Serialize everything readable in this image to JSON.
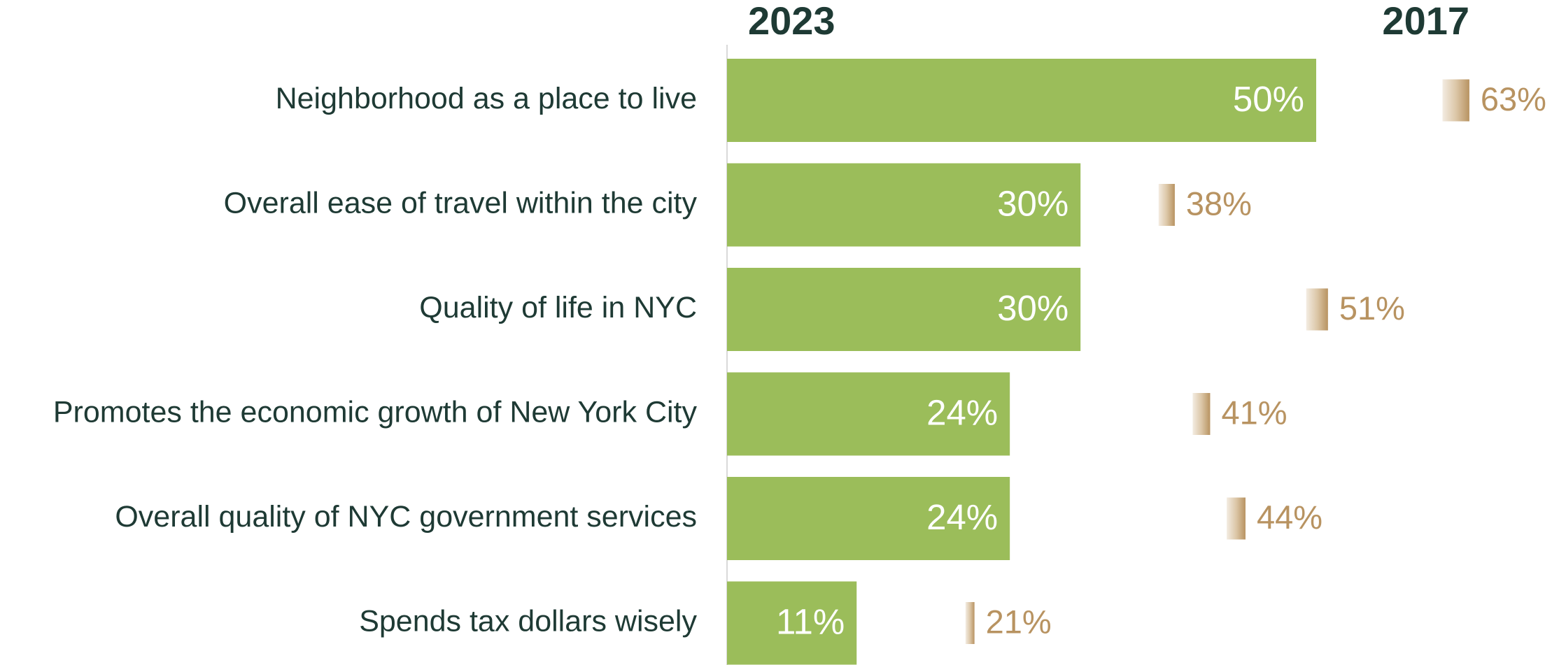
{
  "chart_data": {
    "type": "bar",
    "categories": [
      "Neighborhood as a place to live",
      "Overall ease of travel within the city",
      "Quality of life in NYC",
      "Promotes the economic growth of New York City",
      "Overall quality of NYC government services",
      "Spends tax dollars wisely"
    ],
    "series": [
      {
        "name": "2023",
        "color": "#9bbd5a",
        "values": [
          50,
          30,
          30,
          24,
          24,
          11
        ],
        "value_labels": [
          "50%",
          "30%",
          "30%",
          "24%",
          "24%",
          "11%"
        ]
      },
      {
        "name": "2017",
        "color": "#b89361",
        "values": [
          63,
          38,
          51,
          41,
          44,
          21
        ],
        "value_labels": [
          "63%",
          "38%",
          "51%",
          "41%",
          "44%",
          "21%"
        ]
      }
    ]
  }
}
